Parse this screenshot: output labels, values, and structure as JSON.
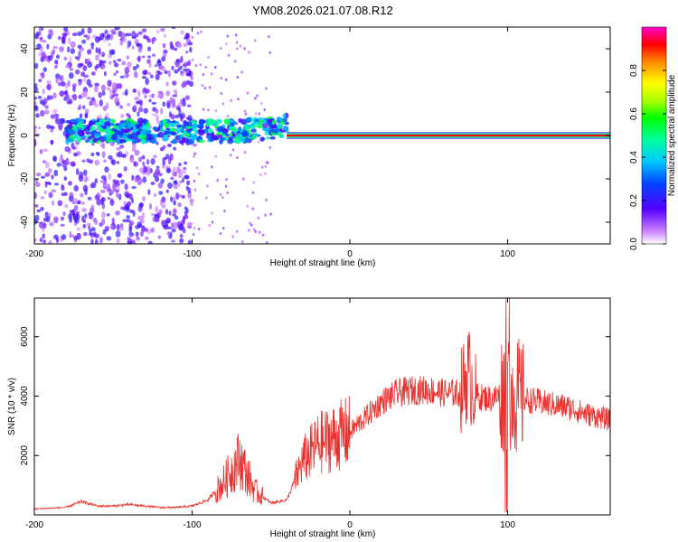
{
  "title": "YM08.2026.021.07.08.R12",
  "chart_data": [
    {
      "type": "heatmap",
      "name": "spectrogram",
      "xlabel": "Height of straight line (km)",
      "ylabel": "Frequency (Hz)",
      "xlim": [
        -200,
        165
      ],
      "ylim": [
        -50,
        50
      ],
      "xticks": [
        -200,
        -100,
        0,
        100
      ],
      "yticks": [
        -40,
        -20,
        0,
        20,
        40
      ],
      "colorbar": {
        "label": "Normalized spectral amplitude",
        "range": [
          0,
          1
        ],
        "ticks": [
          0.0,
          0.2,
          0.4,
          0.6,
          0.8
        ]
      },
      "features": [
        {
          "x_start": -200,
          "x_end": -100,
          "description": "broadband scattered low-amplitude noise",
          "amplitude": 0.15
        },
        {
          "x_start": -180,
          "x_end": -40,
          "center_freq": 2,
          "amplitude": 0.35
        },
        {
          "x_start": -40,
          "x_end": 165,
          "center_freq": 0,
          "amplitude": 1.0
        }
      ]
    },
    {
      "type": "line",
      "name": "snr",
      "xlabel": "Height of straight line (km)",
      "ylabel": "SNR (10 * v/v)",
      "xlim": [
        -200,
        165
      ],
      "ylim": [
        0,
        7300
      ],
      "xticks": [
        -200,
        -100,
        0,
        100
      ],
      "yticks": [
        2000,
        4000,
        6000
      ],
      "color": "#e8312e",
      "series": [
        {
          "name": "SNR",
          "x": [
            -200,
            -180,
            -170,
            -160,
            -150,
            -140,
            -130,
            -120,
            -110,
            -100,
            -90,
            -80,
            -70,
            -60,
            -50,
            -40,
            -30,
            -20,
            -10,
            0,
            10,
            20,
            30,
            40,
            50,
            60,
            70,
            75,
            80,
            90,
            100,
            110,
            120,
            130,
            140,
            150,
            165
          ],
          "y": [
            200,
            250,
            450,
            300,
            300,
            350,
            300,
            250,
            250,
            300,
            500,
            1100,
            1900,
            800,
            400,
            500,
            1800,
            2400,
            2600,
            2800,
            3300,
            3800,
            4100,
            4200,
            4200,
            4100,
            4100,
            4800,
            4000,
            3900,
            4200,
            3900,
            3800,
            3700,
            3600,
            3400,
            3200
          ]
        }
      ]
    }
  ]
}
